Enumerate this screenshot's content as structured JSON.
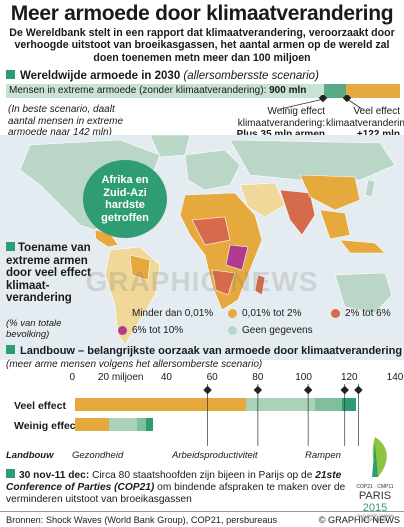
{
  "header": {
    "title": "Meer armoede door klimaatverandering",
    "intro": "De Wereldbank stelt in een rapport dat klimaatverandering, veroorzaakt door verhoogde uitstoot van broeikasgassen, het aantal armen op de wereld zal doen toenemen metn meer dan 100 miljoen"
  },
  "section_2030": {
    "heading": "Wereldwijde armoede in 2030",
    "heading_note": "(allersombersste scenario)",
    "bar_label": "Mensen in extreme armoede (zonder klimaatverandering):",
    "bar_value": "900 mln",
    "best_case": "(In beste scenario, daalt aantal mensen in extreme armoede naar 142 mln)",
    "weak_label": "Weinig effect klimaatverandering:",
    "weak_value": "Plus 35 mln armen",
    "strong_label": "Veel effect klimaatverandering:",
    "strong_value": "+122 mln armen"
  },
  "map": {
    "bubble": "Afrika en Zuid-Azi hardste getroffen",
    "heading": "Toename van extreme armen door veel effect klimaat-verandering",
    "note": "(% van totale bevolking)",
    "legend": [
      {
        "label": "Minder dan 0,01%",
        "color": "#f0d79a"
      },
      {
        "label": "0,01% tot 2%",
        "color": "#e6a93d"
      },
      {
        "label": "2% tot 6%",
        "color": "#d56b4a"
      },
      {
        "label": "6% tot 10%",
        "color": "#b03b8f"
      },
      {
        "label": "Geen gegevens",
        "color": "#b9d6c6"
      }
    ],
    "watermark": "GRAPHIC NEWS"
  },
  "section_landbouw": {
    "heading": "Landbouw – belangrijkste oorzaak van armoede door klimaatverandering",
    "note": "(meer arme mensen volgens het allersomberste scenario)",
    "axis_unit": "miljoen"
  },
  "chart_data": {
    "type": "bar",
    "stacked": true,
    "orientation": "horizontal",
    "categories": [
      "Veel effect",
      "Weinig effect"
    ],
    "x_ticks": [
      0,
      20,
      40,
      60,
      80,
      100,
      120,
      140
    ],
    "xlim": [
      0,
      140
    ],
    "series": [
      {
        "name": "Landbouw",
        "values": [
          75,
          15
        ],
        "color": "#e6a93d"
      },
      {
        "name": "Gezondheid",
        "values": [
          30,
          12
        ],
        "color": "#a9d2b8"
      },
      {
        "name": "Arbeidsproductiviteit",
        "values": [
          12,
          4
        ],
        "color": "#7fbf9c"
      },
      {
        "name": "Rampen",
        "values": [
          6,
          3
        ],
        "color": "#2f9d73"
      }
    ],
    "marker_values": [
      58,
      80,
      102,
      118,
      124
    ]
  },
  "cop": {
    "date": "30 nov-11 dec:",
    "text_a": "Circa 80 staatshoofden zijn bijeen in Parijs op de",
    "conference": "21ste Conference of Parties (COP21)",
    "text_b": "om bindende afspraken te maken over de verminderen uitstoot van broeikasgassen",
    "logo_top": "COP21 · CMP11",
    "logo_city": "PARIS",
    "logo_year": "2015",
    "logo_sub": "UN CLIMATE CHANGE CONFERENCE"
  },
  "footer": {
    "sources": "Bronnen: Shock Waves (World Bank Group), COP21, persbureaus",
    "copyright": "© GRAPHIC NEWS"
  },
  "colors": {
    "green": "#2f9d73",
    "orange": "#e6a93d",
    "light_green": "#b9d6c6",
    "ocean": "#e4ecf1"
  }
}
